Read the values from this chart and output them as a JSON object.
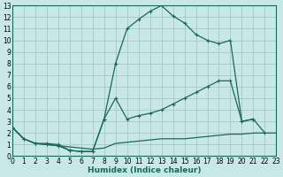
{
  "background_color": "#c8e8e8",
  "grid_color": "#a8c8c8",
  "line_color": "#1a6858",
  "spine_color": "#1a6858",
  "xlim": [
    0,
    23
  ],
  "ylim": [
    0,
    13
  ],
  "xticks": [
    0,
    1,
    2,
    3,
    4,
    5,
    6,
    7,
    8,
    9,
    10,
    11,
    12,
    13,
    14,
    15,
    16,
    17,
    18,
    19,
    20,
    21,
    22,
    23
  ],
  "yticks": [
    0,
    1,
    2,
    3,
    4,
    5,
    6,
    7,
    8,
    9,
    10,
    11,
    12,
    13
  ],
  "xlabel": "Humidex (Indice chaleur)",
  "curve1_x": [
    0,
    1,
    2,
    3,
    4,
    5,
    6,
    7,
    8,
    9,
    10,
    11,
    12,
    13,
    14,
    15,
    16,
    17,
    18,
    19,
    20,
    21,
    22
  ],
  "curve1_y": [
    2.5,
    1.5,
    1.1,
    1.1,
    1.0,
    0.5,
    0.4,
    0.4,
    3.2,
    8.0,
    11.0,
    11.8,
    12.5,
    13.0,
    12.1,
    11.5,
    10.5,
    10.0,
    9.7,
    10.0,
    3.0,
    3.2,
    2.0
  ],
  "curve2_x": [
    0,
    1,
    2,
    3,
    4,
    5,
    6,
    7,
    8,
    9,
    10,
    11,
    12,
    13,
    14,
    15,
    16,
    17,
    18,
    19,
    20,
    21
  ],
  "curve2_y": [
    2.5,
    1.5,
    1.1,
    1.0,
    0.9,
    0.5,
    0.4,
    0.4,
    3.2,
    5.0,
    3.2,
    3.5,
    3.7,
    4.0,
    4.5,
    5.0,
    5.5,
    6.0,
    6.5,
    6.5,
    3.0,
    3.2
  ],
  "curve3_x": [
    0,
    1,
    2,
    3,
    4,
    5,
    6,
    7,
    8,
    9,
    10,
    11,
    12,
    13,
    14,
    15,
    16,
    17,
    18,
    19,
    20,
    21,
    22,
    23
  ],
  "curve3_y": [
    2.5,
    1.5,
    1.1,
    1.0,
    0.9,
    0.8,
    0.7,
    0.6,
    0.7,
    1.1,
    1.2,
    1.3,
    1.4,
    1.5,
    1.5,
    1.5,
    1.6,
    1.7,
    1.8,
    1.9,
    1.9,
    2.0,
    2.0,
    2.0
  ],
  "tick_fontsize": 5.5,
  "xlabel_fontsize": 6.5
}
